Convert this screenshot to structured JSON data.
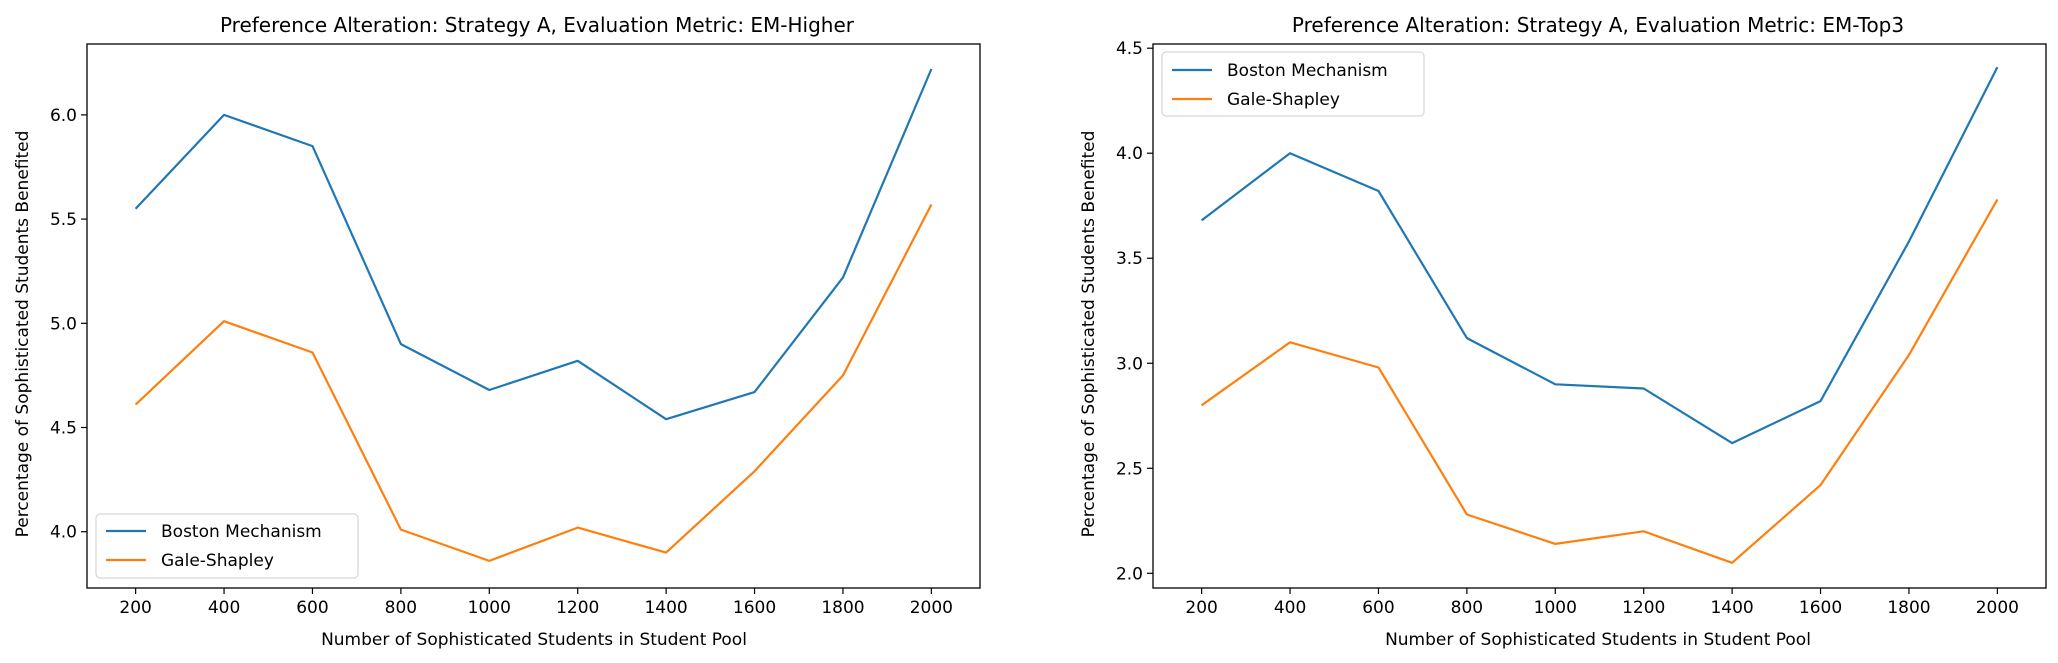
{
  "chart_data": [
    {
      "type": "line",
      "title": "Preference Alteration: Strategy A, Evaluation Metric: EM-Higher",
      "xlabel": "Number of Sophisticated Students in Student Pool",
      "ylabel": "Percentage of Sophisticated Students Benefited",
      "x": [
        200,
        400,
        600,
        800,
        1000,
        1200,
        1400,
        1600,
        1800,
        2000
      ],
      "xticks": [
        "200",
        "400",
        "600",
        "800",
        "1000",
        "1200",
        "1400",
        "1600",
        "1800",
        "2000"
      ],
      "yticks": [
        4.0,
        4.5,
        5.0,
        5.5,
        6.0
      ],
      "ytick_labels": [
        "4.0",
        "4.5",
        "5.0",
        "5.5",
        "6.0"
      ],
      "xlim": [
        90,
        2110
      ],
      "ylim": [
        3.73,
        6.34
      ],
      "legend_position": "lower-left",
      "series": [
        {
          "name": "Boston Mechanism",
          "color": "#1f77b4",
          "values": [
            5.55,
            6.0,
            5.85,
            4.9,
            4.68,
            4.82,
            4.54,
            4.67,
            5.22,
            6.22
          ]
        },
        {
          "name": "Gale-Shapley",
          "color": "#ff7f0e",
          "values": [
            4.61,
            5.01,
            4.86,
            4.01,
            3.86,
            4.02,
            3.9,
            4.29,
            4.75,
            5.57
          ]
        }
      ]
    },
    {
      "type": "line",
      "title": "Preference Alteration: Strategy A, Evaluation Metric: EM-Top3",
      "xlabel": "Number of Sophisticated Students in Student Pool",
      "ylabel": "Percentage of Sophisticated Students Benefited",
      "x": [
        200,
        400,
        600,
        800,
        1000,
        1200,
        1400,
        1600,
        1800,
        2000
      ],
      "xticks": [
        "200",
        "400",
        "600",
        "800",
        "1000",
        "1200",
        "1400",
        "1600",
        "1800",
        "2000"
      ],
      "yticks": [
        2.0,
        2.5,
        3.0,
        3.5,
        4.0,
        4.5
      ],
      "ytick_labels": [
        "2.0",
        "2.5",
        "3.0",
        "3.5",
        "4.0",
        "4.5"
      ],
      "xlim": [
        90,
        2110
      ],
      "ylim": [
        1.93,
        4.52
      ],
      "legend_position": "upper-left",
      "series": [
        {
          "name": "Boston Mechanism",
          "color": "#1f77b4",
          "values": [
            3.68,
            4.0,
            3.82,
            3.12,
            2.9,
            2.88,
            2.62,
            2.82,
            3.58,
            4.41
          ]
        },
        {
          "name": "Gale-Shapley",
          "color": "#ff7f0e",
          "values": [
            2.8,
            3.1,
            2.98,
            2.28,
            2.14,
            2.2,
            2.05,
            2.42,
            3.04,
            3.78
          ]
        }
      ]
    }
  ]
}
